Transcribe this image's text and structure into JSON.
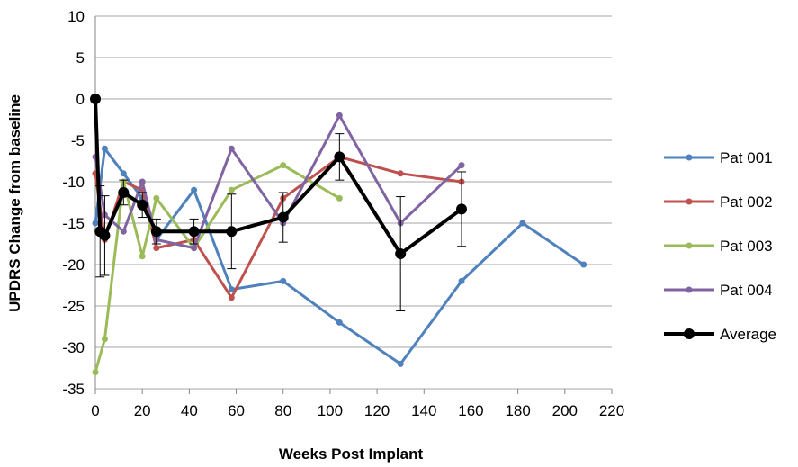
{
  "chart_data": {
    "type": "line",
    "xlabel": "Weeks Post Implant",
    "ylabel": "UPDRS Change from baseline",
    "xlim": [
      0,
      220
    ],
    "ylim": [
      -35,
      10
    ],
    "xticks": [
      0,
      20,
      40,
      60,
      80,
      100,
      120,
      140,
      160,
      180,
      200,
      220
    ],
    "yticks": [
      10,
      5,
      0,
      -5,
      -10,
      -15,
      -20,
      -25,
      -30,
      -35
    ],
    "grid": "horizontal",
    "legend_position": "right",
    "series": [
      {
        "name": "Pat 001",
        "color": "#4F81BD",
        "points": [
          [
            0,
            -15
          ],
          [
            4,
            -6
          ],
          [
            12,
            -9
          ],
          [
            20,
            -12
          ],
          [
            26,
            -17
          ],
          [
            42,
            -11
          ],
          [
            58,
            -23
          ],
          [
            80,
            -22
          ],
          [
            104,
            -27
          ],
          [
            130,
            -32
          ],
          [
            156,
            -22
          ],
          [
            182,
            -15
          ],
          [
            208,
            -20
          ]
        ]
      },
      {
        "name": "Pat 002",
        "color": "#C0504D",
        "points": [
          [
            0,
            -9
          ],
          [
            4,
            -17
          ],
          [
            12,
            -10
          ],
          [
            20,
            -11
          ],
          [
            26,
            -18
          ],
          [
            42,
            -17
          ],
          [
            58,
            -24
          ],
          [
            80,
            -12
          ],
          [
            104,
            -7
          ],
          [
            130,
            -9
          ],
          [
            156,
            -10
          ]
        ]
      },
      {
        "name": "Pat 003",
        "color": "#9BBB59",
        "points": [
          [
            0,
            -33
          ],
          [
            4,
            -29
          ],
          [
            12,
            -10
          ],
          [
            20,
            -19
          ],
          [
            26,
            -12
          ],
          [
            42,
            -18
          ],
          [
            58,
            -11
          ],
          [
            80,
            -8
          ],
          [
            104,
            -12
          ]
        ]
      },
      {
        "name": "Pat 004",
        "color": "#8064A2",
        "points": [
          [
            0,
            -7
          ],
          [
            4,
            -14
          ],
          [
            12,
            -16
          ],
          [
            20,
            -10
          ],
          [
            26,
            -17
          ],
          [
            42,
            -18
          ],
          [
            58,
            -6
          ],
          [
            80,
            -15
          ],
          [
            104,
            -2
          ],
          [
            130,
            -15
          ],
          [
            156,
            -8
          ]
        ]
      },
      {
        "name": "Average",
        "color": "#000000",
        "points": [
          [
            0,
            0
          ],
          [
            2,
            -16
          ],
          [
            4,
            -16.5
          ],
          [
            12,
            -11.3
          ],
          [
            20,
            -12.8
          ],
          [
            26,
            -16
          ],
          [
            42,
            -16
          ],
          [
            58,
            -16
          ],
          [
            80,
            -14.3
          ],
          [
            104,
            -7
          ],
          [
            130,
            -18.7
          ],
          [
            156,
            -13.3
          ]
        ],
        "error": [
          0,
          5.5,
          4.8,
          1.5,
          1.5,
          1.5,
          1.5,
          4.5,
          3,
          2.8,
          6.9,
          4.5
        ]
      }
    ]
  }
}
